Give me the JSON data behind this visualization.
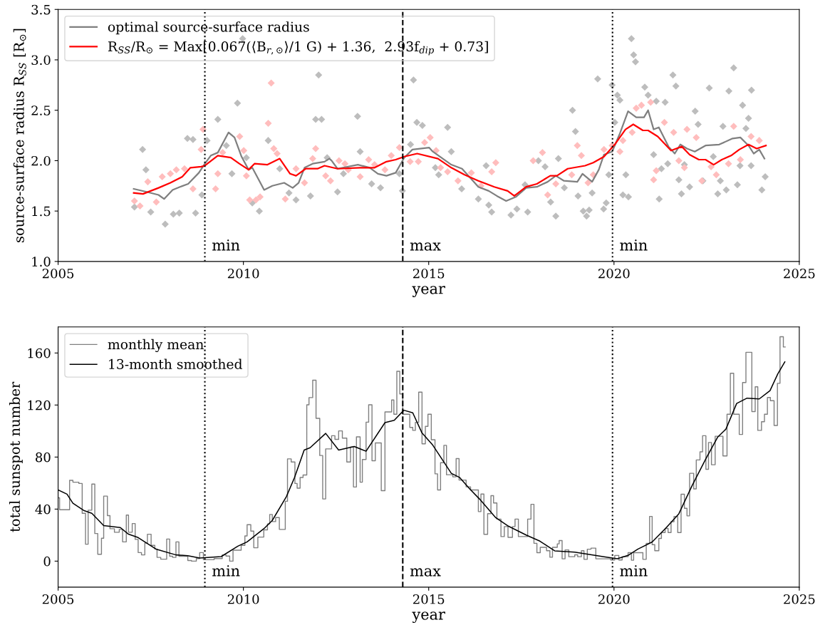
{
  "chart_data": [
    {
      "type": "line",
      "xlabel": "year",
      "ylabel": "source-surface radius R$_{SS}$ [R$_{⊙}$]",
      "xlim": [
        2005,
        2025
      ],
      "xticks": [
        2005,
        2010,
        2015,
        2020,
        2025
      ],
      "ylim": [
        1.0,
        3.5
      ],
      "yticks": [
        {
          "value": 1.0,
          "label": "1.0"
        },
        {
          "value": 1.5,
          "label": "1.5"
        },
        {
          "value": 2.0,
          "label": "2.0"
        },
        {
          "value": 2.5,
          "label": "2.5"
        },
        {
          "value": 3.0,
          "label": "3.0"
        },
        {
          "value": 3.5,
          "label": "3.5"
        }
      ],
      "grid": false,
      "legend": "top left",
      "ref_lines": [
        {
          "axis": "x",
          "value": 2008.96,
          "label": "min",
          "line_style": "dotted",
          "color": "#000000"
        },
        {
          "axis": "x",
          "value": 2014.3,
          "label": "max",
          "line_style": "dashed",
          "color": "#000000"
        },
        {
          "axis": "x",
          "value": 2019.96,
          "label": "min",
          "line_style": "dotted",
          "color": "#000000"
        }
      ],
      "series": [
        {
          "type": "scatter",
          "marker": "diamond",
          "color": "#bdbdbd",
          "x": [
            2007.06,
            2007.28,
            2007.37,
            2007.5,
            2007.89,
            2008.11,
            2008.27,
            2008.49,
            2008.64,
            2008.71,
            2008.88,
            2009.02,
            2009.31,
            2009.54,
            2009.69,
            2009.84,
            2009.98,
            2010.08,
            2010.24,
            2010.43,
            2010.67,
            2010.98,
            2011.23,
            2011.42,
            2011.81,
            2011.95,
            2012.03,
            2012.11,
            2012.26,
            2012.54,
            2012.7,
            2013.08,
            2013.15,
            2013.46,
            2013.7,
            2014.21,
            2014.29,
            2014.51,
            2014.59,
            2014.68,
            2014.83,
            2015.18,
            2015.27,
            2015.51,
            2015.61,
            2015.89,
            2016.34,
            2016.55,
            2016.62,
            2016.7,
            2017.22,
            2017.38,
            2017.6,
            2017.67,
            2017.96,
            2018.14,
            2018.29,
            2018.43,
            2018.5,
            2018.66,
            2018.88,
            2018.96,
            2019.03,
            2019.17,
            2019.26,
            2019.33,
            2019.41,
            2019.56,
            2019.72,
            2019.79,
            2019.86,
            2019.95,
            2020.02,
            2020.09,
            2020.16,
            2020.24,
            2020.32,
            2020.39,
            2020.47,
            2020.53,
            2020.58,
            2020.83,
            2020.92,
            2021.07,
            2021.14,
            2021.22,
            2021.28,
            2021.38,
            2021.45,
            2021.59,
            2021.67,
            2021.75,
            2021.82,
            2021.9,
            2022.04,
            2022.19,
            2022.27,
            2022.4,
            2022.57,
            2022.68,
            2022.8,
            2022.87,
            2022.94,
            2023.03,
            2023.1,
            2023.23,
            2023.33,
            2023.4,
            2023.47,
            2023.56,
            2023.63,
            2023.7,
            2023.71,
            2023.99,
            2024.08
          ],
          "values": [
            1.54,
            2.11,
            1.91,
            1.49,
            1.37,
            1.47,
            1.48,
            2.22,
            2.21,
            1.48,
            1.66,
            2.2,
            2.41,
            2.15,
            1.87,
            2.57,
            3.21,
            2.03,
            1.58,
            1.5,
            2.2,
            1.92,
            1.68,
            1.61,
            1.65,
            2.41,
            2.85,
            2.41,
            2.03,
            1.69,
            1.87,
            2.44,
            2.09,
            1.77,
            1.73,
            1.87,
            1.7,
            2.16,
            2.8,
            2.38,
            2.35,
            1.93,
            1.86,
            2.33,
            2.09,
            1.72,
            1.62,
            1.95,
            1.56,
            1.49,
            1.46,
            1.52,
            1.76,
            1.49,
            2.0,
            1.94,
            1.59,
            1.45,
            2.02,
            1.73,
            2.5,
            2.29,
            1.65,
            1.5,
            1.45,
            1.51,
            1.68,
            2.81,
            1.52,
            1.58,
            1.86,
            2.75,
            2.38,
            2.65,
            2.6,
            1.66,
            1.86,
            1.64,
            3.21,
            3.05,
            2.98,
            2.73,
            2.65,
            2.06,
            2.59,
            1.62,
            1.92,
            2.58,
            1.97,
            2.85,
            2.74,
            1.81,
            1.67,
            1.96,
            1.74,
            2.49,
            2.36,
            1.8,
            2.72,
            2.04,
            1.67,
            1.8,
            2.34,
            1.71,
            2.69,
            2.92,
            1.76,
            1.95,
            2.55,
            2.32,
            2.42,
            1.95,
            2.7,
            1.71,
            1.84
          ]
        },
        {
          "type": "scatter",
          "marker": "diamond",
          "color": "#ffbdbd",
          "x": [
            2007.06,
            2007.21,
            2007.42,
            2007.65,
            2007.81,
            2008.03,
            2008.19,
            2008.41,
            2008.64,
            2008.86,
            2008.91,
            2009.25,
            2009.31,
            2009.44,
            2009.9,
            2010.01,
            2010.08,
            2010.17,
            2010.34,
            2010.45,
            2010.67,
            2010.75,
            2010.82,
            2010.91,
            2011.13,
            2011.42,
            2011.65,
            2011.87,
            2011.95,
            2012.22,
            2012.35,
            2012.58,
            2012.74,
            2012.83,
            2013.15,
            2013.38,
            2013.54,
            2013.82,
            2013.99,
            2014.21,
            2014.5,
            2014.72,
            2014.89,
            2015.04,
            2015.2,
            2015.32,
            2015.51,
            2015.79,
            2016.15,
            2016.41,
            2016.7,
            2016.81,
            2017.82,
            2018.07,
            2018.21,
            2018.43,
            2018.86,
            2019.01,
            2019.12,
            2019.3,
            2019.44,
            2019.73,
            2019.95,
            2020.16,
            2020.24,
            2020.49,
            2020.6,
            2020.74,
            2020.99,
            2021.07,
            2021.14,
            2021.36,
            2021.61,
            2021.75,
            2021.9,
            2021.97,
            2022.22,
            2022.37,
            2022.62,
            2022.76,
            2023.09,
            2023.23,
            2023.41,
            2023.7,
            2023.92
          ],
          "values": [
            1.6,
            1.55,
            1.79,
            1.59,
            1.84,
            1.87,
            1.91,
            1.92,
            1.72,
            2.11,
            2.31,
            1.72,
            1.87,
            2.08,
            2.24,
            2.1,
            1.85,
            1.61,
            1.61,
            1.64,
            2.37,
            2.77,
            2.12,
            2.07,
            1.62,
            1.92,
            1.78,
            2.02,
            2.12,
            1.85,
            1.8,
            2.0,
            1.97,
            1.91,
            1.84,
            2.01,
            1.96,
            1.91,
            2.05,
            2.13,
            1.99,
            1.99,
            2.18,
            2.23,
            2.1,
            1.93,
            1.89,
            1.8,
            1.88,
            1.75,
            1.89,
            1.98,
            2.0,
            2.08,
            1.66,
            1.77,
            1.86,
            2.15,
            2.05,
            1.78,
            1.86,
            2.11,
            2.15,
            2.09,
            2.2,
            2.28,
            2.52,
            2.55,
            2.58,
            1.81,
            1.9,
            2.38,
            2.28,
            2.0,
            1.93,
            2.31,
            2.23,
            1.8,
            1.94,
            1.86,
            1.97,
            2.34,
            2.01,
            2.24,
            2.2
          ]
        },
        {
          "type": "line",
          "name": "optimal source-surface radius",
          "color": "#7f7f7f",
          "x": [
            2007.04,
            2007.39,
            2007.71,
            2007.86,
            2008.09,
            2008.29,
            2008.51,
            2008.8,
            2008.96,
            2009.12,
            2009.31,
            2009.6,
            2009.76,
            2009.95,
            2010.14,
            2010.24,
            2010.56,
            2010.78,
            2011.1,
            2011.33,
            2011.49,
            2011.65,
            2011.87,
            2012.19,
            2012.32,
            2012.38,
            2012.54,
            2013.09,
            2013.41,
            2013.63,
            2013.86,
            2014.11,
            2014.34,
            2014.56,
            2015.01,
            2015.11,
            2015.61,
            2015.9,
            2016.34,
            2016.62,
            2016.84,
            2017.09,
            2017.35,
            2017.63,
            2017.92,
            2018.21,
            2018.43,
            2018.65,
            2019.01,
            2019.15,
            2019.41,
            2019.59,
            2019.73,
            2019.95,
            2020.16,
            2020.38,
            2020.6,
            2020.81,
            2020.92,
            2021.07,
            2021.21,
            2021.47,
            2021.64,
            2021.79,
            2021.97,
            2022.18,
            2022.47,
            2022.84,
            2023.2,
            2023.41,
            2023.63,
            2023.77,
            2023.92,
            2024.06
          ],
          "values": [
            1.72,
            1.69,
            1.66,
            1.62,
            1.71,
            1.74,
            1.77,
            1.88,
            1.97,
            2.05,
            2.08,
            2.28,
            2.23,
            2.04,
            1.91,
            1.93,
            1.71,
            1.75,
            1.78,
            1.73,
            1.78,
            1.93,
            1.97,
            1.99,
            2.02,
            2.0,
            1.92,
            1.96,
            1.93,
            1.87,
            1.85,
            1.88,
            2.03,
            2.11,
            2.13,
            2.09,
            1.96,
            1.92,
            1.74,
            1.7,
            1.65,
            1.6,
            1.64,
            1.73,
            1.74,
            1.79,
            1.85,
            1.8,
            1.79,
            1.87,
            1.79,
            1.91,
            2.06,
            2.09,
            2.27,
            2.49,
            2.43,
            2.43,
            2.5,
            2.31,
            2.33,
            2.14,
            2.07,
            2.16,
            2.12,
            2.09,
            2.15,
            2.16,
            2.22,
            2.23,
            2.15,
            2.07,
            2.11,
            2.02
          ]
        },
        {
          "type": "line",
          "name": "R$_{SS}$/R$_{⊙}$ = Max[0.067(⟨B$_{r,⊙}$⟩/1 G) + 1.36,  2.93f$_{dip}$ + 0.73]",
          "color": "#ff0000",
          "x": [
            2007.04,
            2007.29,
            2007.71,
            2008.03,
            2008.35,
            2008.57,
            2008.86,
            2008.96,
            2009.31,
            2009.66,
            2009.89,
            2010.14,
            2010.3,
            2010.65,
            2010.98,
            2011.26,
            2011.42,
            2011.68,
            2012.0,
            2012.19,
            2012.54,
            2013.15,
            2013.54,
            2013.86,
            2014.11,
            2014.34,
            2014.69,
            2015.25,
            2015.61,
            2015.97,
            2016.34,
            2016.77,
            2017.13,
            2017.31,
            2017.63,
            2017.92,
            2018.28,
            2018.46,
            2018.75,
            2019.22,
            2019.44,
            2019.73,
            2020.02,
            2020.31,
            2020.52,
            2020.78,
            2020.92,
            2021.18,
            2021.54,
            2021.83,
            2022.04,
            2022.29,
            2022.47,
            2022.69,
            2022.91,
            2023.16,
            2023.38,
            2023.63,
            2023.85,
            2024.1
          ],
          "values": [
            1.68,
            1.67,
            1.73,
            1.78,
            1.84,
            1.93,
            1.94,
            1.95,
            2.05,
            2.03,
            1.97,
            1.91,
            1.97,
            1.96,
            2.02,
            1.87,
            1.85,
            1.92,
            1.92,
            1.95,
            1.92,
            1.93,
            1.93,
            1.99,
            2.01,
            2.04,
            2.07,
            2.02,
            1.93,
            1.86,
            1.8,
            1.74,
            1.7,
            1.65,
            1.74,
            1.77,
            1.85,
            1.85,
            1.92,
            1.95,
            1.98,
            2.04,
            2.16,
            2.31,
            2.36,
            2.3,
            2.3,
            2.24,
            2.1,
            2.14,
            2.06,
            2.01,
            2.01,
            1.96,
            2.01,
            2.05,
            2.11,
            2.16,
            2.12,
            2.15
          ]
        }
      ]
    },
    {
      "type": "line",
      "xlabel": "year",
      "ylabel": "total sunspot number",
      "xlim": [
        2005,
        2025
      ],
      "xticks": [
        2005,
        2010,
        2015,
        2020,
        2025
      ],
      "ylim": [
        -20,
        180
      ],
      "yticks": [
        0,
        40,
        80,
        120,
        160
      ],
      "grid": false,
      "legend": "top left",
      "ref_lines": [
        {
          "axis": "x",
          "value": 2008.96,
          "label": "min",
          "line_style": "dotted",
          "color": "#000000"
        },
        {
          "axis": "x",
          "value": 2014.3,
          "label": "max",
          "line_style": "dashed",
          "color": "#000000"
        },
        {
          "axis": "x",
          "value": 2019.96,
          "label": "min",
          "line_style": "dotted",
          "color": "#000000"
        }
      ],
      "series": [
        {
          "type": "step",
          "name": "monthly mean",
          "color": "#7f7f7f",
          "x": [
            2005.0,
            2005.04,
            2005.31,
            2005.4,
            2005.56,
            2005.65,
            2005.74,
            2005.81,
            2005.91,
            2005.99,
            2006.07,
            2006.17,
            2006.23,
            2006.33,
            2006.4,
            2006.52,
            2006.65,
            2006.74,
            2006.84,
            2006.9,
            2007.0,
            2007.08,
            2007.16,
            2007.25,
            2007.34,
            2007.41,
            2007.51,
            2007.61,
            2007.67,
            2007.77,
            2007.93,
            2008.01,
            2008.09,
            2008.18,
            2008.26,
            2008.5,
            2008.6,
            2008.73,
            2008.82,
            2008.92,
            2009.21,
            2009.43,
            2009.53,
            2009.63,
            2009.72,
            2009.94,
            2010.04,
            2010.1,
            2010.2,
            2010.28,
            2010.39,
            2010.55,
            2010.65,
            2010.71,
            2010.78,
            2010.87,
            2010.97,
            2011.13,
            2011.19,
            2011.29,
            2011.39,
            2011.45,
            2011.53,
            2011.61,
            2011.71,
            2011.77,
            2011.87,
            2011.96,
            2012.06,
            2012.14,
            2012.22,
            2012.38,
            2012.47,
            2012.57,
            2012.67,
            2012.79,
            2012.89,
            2012.97,
            2013.05,
            2013.15,
            2013.21,
            2013.31,
            2013.38,
            2013.47,
            2013.56,
            2013.72,
            2013.82,
            2014.0,
            2014.06,
            2014.14,
            2014.22,
            2014.3,
            2014.49,
            2014.57,
            2014.64,
            2014.73,
            2014.82,
            2014.91,
            2014.98,
            2015.07,
            2015.17,
            2015.24,
            2015.32,
            2015.41,
            2015.48,
            2015.65,
            2015.74,
            2015.82,
            2016.01,
            2016.13,
            2016.34,
            2016.41,
            2016.49,
            2016.59,
            2016.68,
            2016.75,
            2016.84,
            2016.95,
            2017.04,
            2017.14,
            2017.26,
            2017.33,
            2017.42,
            2017.67,
            2017.76,
            2017.84,
            2017.92,
            2018.01,
            2018.18,
            2018.27,
            2018.34,
            2018.47,
            2018.52,
            2018.6,
            2018.68,
            2018.78,
            2018.94,
            2019.02,
            2019.12,
            2019.19,
            2019.28,
            2019.38,
            2019.51,
            2019.91,
            2020.02,
            2020.13,
            2020.22,
            2020.38,
            2020.47,
            2020.53,
            2020.78,
            2020.87,
            2020.96,
            2021.03,
            2021.1,
            2021.21,
            2021.28,
            2021.38,
            2021.46,
            2021.54,
            2021.62,
            2021.72,
            2021.81,
            2021.9,
            2021.97,
            2022.04,
            2022.15,
            2022.22,
            2022.32,
            2022.39,
            2022.48,
            2022.55,
            2022.63,
            2022.73,
            2022.94,
            2023.05,
            2023.14,
            2023.23,
            2023.38,
            2023.47,
            2023.56,
            2023.72,
            2023.81,
            2023.88,
            2023.98,
            2024.06,
            2024.14,
            2024.22,
            2024.32,
            2024.41,
            2024.48,
            2024.57,
            2024.62
          ],
          "values": [
            48.7,
            39.5,
            62.1,
            60.7,
            59.7,
            36.8,
            13.0,
            39.2,
            59.2,
            21.2,
            5.3,
            17.6,
            50.0,
            35.0,
            24.9,
            22.2,
            24.4,
            14.8,
            35.4,
            22.2,
            28.9,
            16.7,
            6.6,
            4.8,
            13.9,
            20.7,
            12.1,
            9.3,
            2.9,
            1.5,
            17.0,
            3.8,
            2.9,
            14.8,
            3.8,
            0.5,
            0,
            2.0,
            6.6,
            1.1,
            2.0,
            4.8,
            3.9,
            0,
            8.4,
            12.1,
            19.4,
            28.0,
            23.1,
            10.3,
            18.5,
            24.0,
            28.6,
            35.9,
            30.4,
            33.5,
            24.4,
            46.0,
            78.6,
            76.2,
            59.7,
            56.1,
            64.3,
            66.2,
            120.2,
            125.7,
            139.1,
            109.8,
            81.2,
            47.8,
            86.3,
            96.4,
            93.6,
            100.1,
            94.6,
            76.2,
            87.8,
            57.0,
            95.5,
            60.7,
            78.1,
            106.8,
            120.2,
            77.2,
            90.9,
            54.2,
            114.7,
            123.9,
            112.9,
            145.9,
            128.5,
            112.9,
            102.8,
            100.5,
            106.7,
            129.9,
            90.2,
            103.6,
            112.9,
            93.3,
            67.1,
            54.7,
            75.7,
            89.0,
            66.4,
            64.8,
            78.8,
            62.3,
            57.1,
            54.7,
            38.1,
            51.6,
            20.6,
            36.5,
            50.3,
            44.7,
            32.3,
            18.9,
            26.6,
            18.3,
            26.6,
            32.3,
            18.9,
            32.3,
            43.7,
            13.7,
            6.5,
            10.6,
            8.0,
            3.0,
            10.6,
            13.3,
            15.8,
            1.8,
            8.6,
            3.4,
            4.9,
            3.4,
            8.0,
            1.4,
            9.2,
            10.0,
            1.8,
            0.9,
            4.4,
            0.9,
            3.4,
            6.5,
            0.7,
            6.5,
            1.4,
            13.7,
            34.4,
            12.7,
            8.0,
            17.5,
            22.0,
            25.1,
            22.0,
            30.3,
            34.4,
            22.0,
            51.4,
            40.6,
            34.8,
            67.5,
            55.5,
            77.8,
            84.0,
            96.4,
            70.6,
            91.2,
            74.1,
            96.0,
            80.9,
            112.9,
            144.4,
            112.9,
            97.4,
            137.3,
            160.5,
            115.0,
            134.0,
            100.5,
            107.2,
            112.9,
            125.8,
            123.3,
            104.3,
            136.7,
            172.5,
            164.6,
            164.6
          ]
        },
        {
          "type": "line",
          "name": "13-month smoothed",
          "color": "#000000",
          "x": [
            2005.0,
            2005.24,
            2005.4,
            2005.69,
            2005.91,
            2006.23,
            2006.68,
            2006.9,
            2007.16,
            2007.64,
            2008.18,
            2008.5,
            2008.82,
            2009.4,
            2009.85,
            2010.1,
            2010.55,
            2010.78,
            2011.16,
            2011.38,
            2011.64,
            2011.8,
            2012.22,
            2012.57,
            2012.99,
            2013.31,
            2013.82,
            2014.07,
            2014.33,
            2014.57,
            2014.82,
            2015.11,
            2015.61,
            2015.83,
            2016.12,
            2016.37,
            2016.81,
            2017.13,
            2017.64,
            2018.0,
            2018.4,
            2018.94,
            2019.73,
            2020.09,
            2020.38,
            2020.64,
            2021.03,
            2021.39,
            2021.75,
            2022.11,
            2022.48,
            2022.8,
            2023.02,
            2023.31,
            2023.59,
            2023.92,
            2024.21,
            2024.42,
            2024.61
          ],
          "values": [
            54.8,
            51.5,
            44.5,
            39.0,
            36.8,
            27.3,
            25.8,
            20.7,
            18.1,
            9.3,
            4.8,
            4.2,
            2.4,
            3.5,
            11.5,
            14.8,
            24.9,
            31.3,
            49.6,
            64.3,
            85.4,
            87.2,
            98.2,
            85.4,
            88.1,
            84.5,
            106.5,
            108.3,
            116.0,
            114.0,
            98.5,
            89.2,
            67.5,
            64.4,
            55.1,
            47.8,
            33.4,
            27.2,
            19.9,
            15.4,
            7.9,
            6.9,
            3.4,
            1.9,
            4.4,
            9.2,
            14.7,
            25.1,
            36.4,
            58.2,
            78.8,
            95.4,
            101.5,
            121.2,
            125.3,
            124.7,
            131.1,
            143.9,
            153.2
          ]
        }
      ]
    }
  ]
}
